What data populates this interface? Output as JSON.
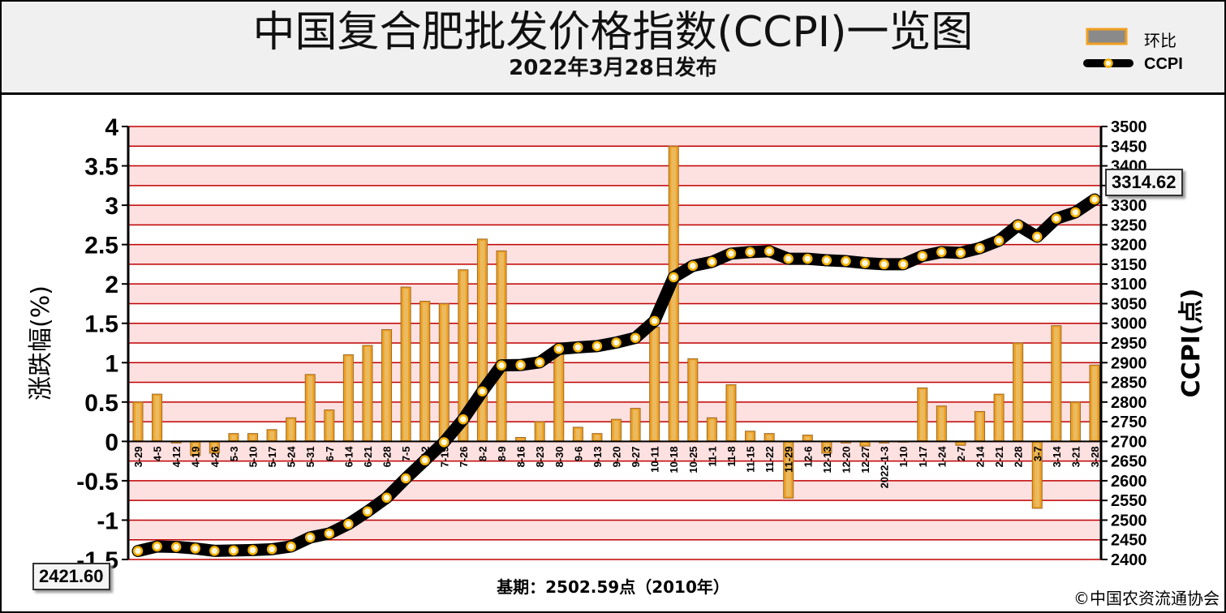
{
  "header": {
    "title": "中国复合肥批发价格指数(CCPI)一览图",
    "subtitle": "2022年3月28日发布"
  },
  "legend": {
    "bar_label": "环比",
    "line_label": "CCPI"
  },
  "labels": {
    "start_value": "2421.60",
    "end_value": "3314.62",
    "base_period": "基期：2502.59点（2010年）",
    "copyright": "©中国农资流通协会"
  },
  "colors": {
    "bar_fill": "#f0a020",
    "bar_edge": "#9a6a28",
    "bar_inner": "#e8c070",
    "line": "#000000",
    "marker": "#f2b000",
    "band": "#fde0e0",
    "grid": "#c00000"
  },
  "chart_data": {
    "type": "bar+line",
    "categories": [
      "3-29",
      "4-5",
      "4-12",
      "4-19",
      "4-26",
      "5-3",
      "5-10",
      "5-17",
      "5-24",
      "5-31",
      "6-7",
      "6-14",
      "6-21",
      "6-28",
      "7-5",
      "7-12",
      "7-19",
      "7-26",
      "8-2",
      "8-9",
      "8-16",
      "8-23",
      "8-30",
      "9-6",
      "9-13",
      "9-20",
      "9-27",
      "10-11",
      "10-18",
      "10-25",
      "11-1",
      "11-8",
      "11-15",
      "11-22",
      "11-29",
      "12-6",
      "12-13",
      "12-20",
      "12-27",
      "2022-1-3",
      "1-10",
      "1-17",
      "1-24",
      "2-7",
      "2-14",
      "2-21",
      "2-28",
      "3-7",
      "3-14",
      "3-21",
      "3-28"
    ],
    "series": [
      {
        "name": "环比",
        "axis": "left",
        "values": [
          0.5,
          0.6,
          -0.02,
          -0.18,
          -0.15,
          0.1,
          0.1,
          0.15,
          0.3,
          0.85,
          0.4,
          1.1,
          1.22,
          1.42,
          1.96,
          1.78,
          1.75,
          2.18,
          2.57,
          2.42,
          0.05,
          0.25,
          1.15,
          0.18,
          0.1,
          0.28,
          0.42,
          1.45,
          3.75,
          1.05,
          0.3,
          0.72,
          0.13,
          0.1,
          -0.72,
          0.08,
          -0.15,
          -0.02,
          -0.06,
          -0.02,
          -0.01,
          0.68,
          0.45,
          -0.05,
          0.38,
          0.6,
          1.25,
          -0.85,
          1.47,
          0.5,
          0.97
        ]
      },
      {
        "name": "CCPI",
        "axis": "right",
        "values": [
          2421.6,
          2433,
          2432,
          2428,
          2422,
          2423,
          2424,
          2426,
          2433,
          2456,
          2466,
          2490,
          2522,
          2557,
          2606,
          2652,
          2698,
          2756,
          2827,
          2893,
          2894,
          2901,
          2935,
          2939,
          2942,
          2951,
          2963,
          3006,
          3117,
          3146,
          3156,
          3177,
          3181,
          3183,
          3164,
          3164,
          3160,
          3158,
          3153,
          3150,
          3150,
          3171,
          3181,
          3179,
          3191,
          3210,
          3249,
          3220,
          3266,
          3282,
          3314.62
        ]
      }
    ],
    "ylabel": "涨跌幅(%)",
    "y2label": "CCPI(点)",
    "ylim": [
      -1.5,
      4
    ],
    "y2lim": [
      2400,
      3500
    ],
    "yticks": [
      "4",
      "3.5",
      "3",
      "2.5",
      "2",
      "1.5",
      "1",
      "0.5",
      "0",
      "-0.5",
      "-1",
      "-1.5"
    ],
    "y2ticks": [
      "3500",
      "3450",
      "3400",
      "3350",
      "3300",
      "3250",
      "3200",
      "3150",
      "3100",
      "3050",
      "3000",
      "2950",
      "2900",
      "2850",
      "2800",
      "2750",
      "2700",
      "2650",
      "2600",
      "2550",
      "2500",
      "2450",
      "2400"
    ]
  }
}
